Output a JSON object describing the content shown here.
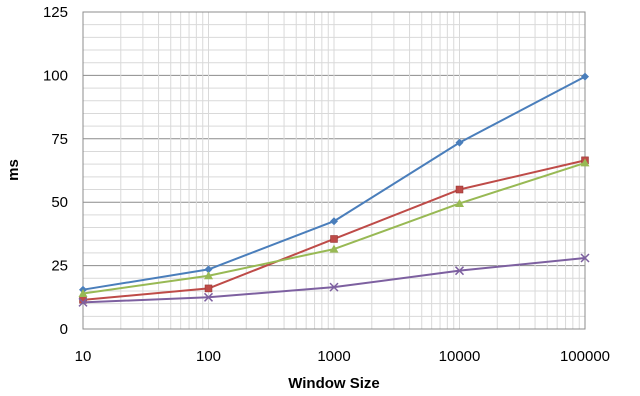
{
  "chart_data": {
    "type": "line",
    "title": "",
    "xlabel": "Window Size",
    "ylabel": "ms",
    "xscale": "log",
    "xlim": [
      10,
      100000
    ],
    "ylim": [
      0,
      125
    ],
    "x_ticks": [
      10,
      100,
      1000,
      10000,
      100000
    ],
    "x_tick_labels": [
      "10",
      "100",
      "1000",
      "10000",
      "100000"
    ],
    "y_ticks": [
      0,
      25,
      50,
      75,
      100,
      125
    ],
    "y_tick_labels": [
      "0",
      "25",
      "50",
      "75",
      "100",
      "125"
    ],
    "grid": true,
    "legend": "none",
    "x": [
      10,
      100,
      1000,
      10000,
      100000
    ],
    "series": [
      {
        "values": [
          15.5,
          23.5,
          42.5,
          73.5,
          99.5
        ],
        "color": "#4a7ebb",
        "marker": "diamond"
      },
      {
        "values": [
          11.5,
          16,
          35.5,
          55,
          66.5
        ],
        "color": "#be4b48",
        "marker": "square"
      },
      {
        "values": [
          14,
          21,
          31.5,
          49.5,
          65.5
        ],
        "color": "#98b954",
        "marker": "triangle"
      },
      {
        "values": [
          10.5,
          12.5,
          16.5,
          23,
          28
        ],
        "color": "#7d60a0",
        "marker": "x"
      }
    ]
  }
}
